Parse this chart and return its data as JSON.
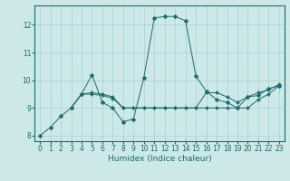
{
  "title": "",
  "xlabel": "Humidex (Indice chaleur)",
  "xlim": [
    -0.5,
    23.5
  ],
  "ylim": [
    7.8,
    12.7
  ],
  "yticks": [
    8,
    9,
    10,
    11,
    12
  ],
  "xticks": [
    0,
    1,
    2,
    3,
    4,
    5,
    6,
    7,
    8,
    9,
    10,
    11,
    12,
    13,
    14,
    15,
    16,
    17,
    18,
    19,
    20,
    21,
    22,
    23
  ],
  "background_color": "#cce8e8",
  "line_color": "#1a6b6b",
  "grid_color": "#aacfcf",
  "lines": [
    {
      "x": [
        0,
        1,
        2,
        3,
        4,
        5,
        6,
        7,
        8,
        9,
        10,
        11,
        12,
        13,
        14,
        15,
        16,
        17,
        18,
        19,
        20,
        21,
        22,
        23
      ],
      "y": [
        8.0,
        8.3,
        8.7,
        9.0,
        9.5,
        10.2,
        9.2,
        9.0,
        8.5,
        8.6,
        10.1,
        12.25,
        12.3,
        12.3,
        12.15,
        10.15,
        9.6,
        9.3,
        9.2,
        9.0,
        9.4,
        9.45,
        9.7,
        9.8
      ]
    },
    {
      "x": [
        3,
        4,
        5,
        6,
        7,
        8,
        9,
        10,
        11,
        12,
        13,
        14,
        15,
        16,
        17,
        18,
        19,
        20,
        21,
        22,
        23
      ],
      "y": [
        9.0,
        9.5,
        9.5,
        9.45,
        9.35,
        9.0,
        9.0,
        9.0,
        9.0,
        9.0,
        9.0,
        9.0,
        9.0,
        9.0,
        9.0,
        9.0,
        9.0,
        9.0,
        9.3,
        9.5,
        9.8
      ]
    },
    {
      "x": [
        3,
        4,
        5,
        6,
        7,
        8,
        9,
        10,
        11,
        12,
        13,
        14,
        15,
        16,
        17,
        18,
        19,
        20,
        21,
        22,
        23
      ],
      "y": [
        9.0,
        9.5,
        9.55,
        9.5,
        9.4,
        9.0,
        9.0,
        9.0,
        9.0,
        9.0,
        9.0,
        9.0,
        9.0,
        9.55,
        9.55,
        9.4,
        9.2,
        9.4,
        9.55,
        9.65,
        9.85
      ]
    }
  ]
}
